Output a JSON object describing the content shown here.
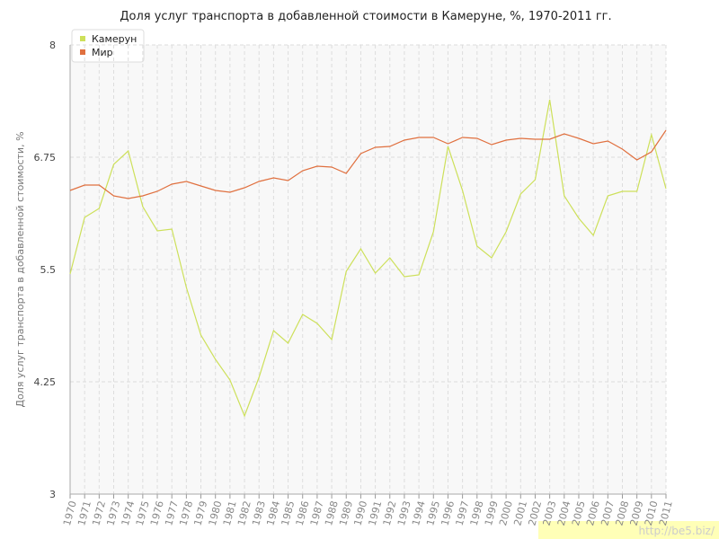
{
  "chart_data": {
    "type": "line",
    "title": "Доля услуг транспорта в добавленной стоимости в Камеруне, %, 1970-2011 гг.",
    "y_label": "Доля услуг транспорта в добавленной стоимости, %",
    "categories": [
      "1970",
      "1971",
      "1972",
      "1973",
      "1974",
      "1975",
      "1976",
      "1977",
      "1978",
      "1979",
      "1980",
      "1981",
      "1982",
      "1983",
      "1984",
      "1985",
      "1986",
      "1987",
      "1988",
      "1989",
      "1990",
      "1991",
      "1992",
      "1993",
      "1994",
      "1995",
      "1996",
      "1997",
      "1998",
      "1999",
      "2000",
      "2001",
      "2002",
      "2003",
      "2004",
      "2005",
      "2006",
      "2007",
      "2008",
      "2009",
      "2010",
      "2011"
    ],
    "series": [
      {
        "name": "Камерун",
        "color": "#cde05a",
        "values": [
          5.45,
          6.08,
          6.18,
          6.67,
          6.82,
          6.2,
          5.93,
          5.95,
          5.3,
          4.77,
          4.5,
          4.27,
          3.87,
          4.3,
          4.82,
          4.68,
          5.0,
          4.9,
          4.72,
          5.48,
          5.73,
          5.46,
          5.63,
          5.42,
          5.44,
          5.92,
          6.87,
          6.38,
          5.76,
          5.63,
          5.92,
          6.34,
          6.5,
          7.39,
          6.32,
          6.07,
          5.88,
          6.32,
          6.37,
          6.37,
          7.0,
          6.4
        ]
      },
      {
        "name": "Мир",
        "color": "#e0703f",
        "values": [
          6.38,
          6.44,
          6.44,
          6.32,
          6.29,
          6.32,
          6.37,
          6.45,
          6.48,
          6.43,
          6.38,
          6.36,
          6.41,
          6.48,
          6.52,
          6.49,
          6.6,
          6.65,
          6.64,
          6.57,
          6.79,
          6.86,
          6.87,
          6.94,
          6.97,
          6.97,
          6.9,
          6.97,
          6.96,
          6.89,
          6.94,
          6.96,
          6.95,
          6.95,
          7.01,
          6.96,
          6.9,
          6.93,
          6.84,
          6.72,
          6.81,
          7.05
        ]
      }
    ],
    "ylim": [
      3,
      8
    ],
    "yticks": [
      3,
      4.25,
      5.5,
      6.75,
      8
    ],
    "grid": true,
    "legend": "top-left",
    "watermark": "http://be5.biz/"
  }
}
